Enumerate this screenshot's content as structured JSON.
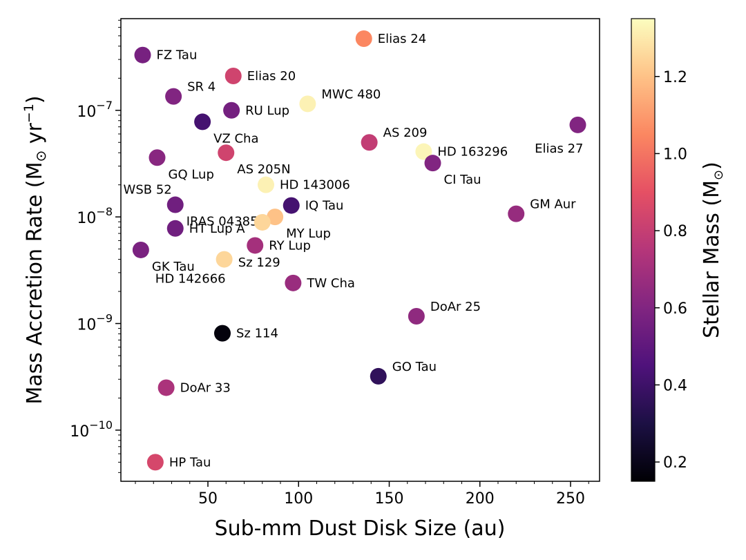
{
  "chart_data": {
    "type": "scatter",
    "title": "",
    "xlabel": "Sub-mm Dust Disk Size (au)",
    "ylabel": "Mass Accretion Rate (M",
    "ylabel_sub": "⊙",
    "ylabel_unit": " yr",
    "ylabel_exp": "−1",
    "ylabel_close": ")",
    "colorbar_label": "Stellar Mass (M",
    "colorbar_label_sub": "⊙",
    "colorbar_label_close": ")",
    "xlim": [
      2,
      266
    ],
    "ylog10lim": [
      -10.48,
      -6.14
    ],
    "y_scale": "log",
    "x_ticks": [
      50,
      100,
      150,
      200,
      250
    ],
    "y_ticks": [
      {
        "exp": -10,
        "label_base": "10",
        "label_exp": "−10"
      },
      {
        "exp": -9,
        "label_base": "10",
        "label_exp": "−9"
      },
      {
        "exp": -8,
        "label_base": "10",
        "label_exp": "−8"
      },
      {
        "exp": -7,
        "label_base": "10",
        "label_exp": "−7"
      }
    ],
    "colorbar_range": [
      0.15,
      1.35
    ],
    "colorbar_ticks": [
      "0.2",
      "0.4",
      "0.6",
      "0.8",
      "1.0",
      "1.2"
    ],
    "colormap": [
      "#000004",
      "#1c1044",
      "#4f127b",
      "#812581",
      "#b5367a",
      "#e55064",
      "#fb8761",
      "#fec287",
      "#fcfdbf"
    ],
    "points": [
      {
        "name": "FZ Tau",
        "x": 14,
        "y": 3.3e-07,
        "mass": 0.57,
        "label_pos": "right"
      },
      {
        "name": "Elias 24",
        "x": 136,
        "y": 4.7e-07,
        "mass": 1.05,
        "label_pos": "right"
      },
      {
        "name": "Elias 20",
        "x": 64,
        "y": 2.1e-07,
        "mass": 0.83,
        "label_pos": "right"
      },
      {
        "name": "SR 4",
        "x": 31,
        "y": 1.35e-07,
        "mass": 0.6,
        "label_pos": "right-up"
      },
      {
        "name": "RU Lup",
        "x": 63,
        "y": 1e-07,
        "mass": 0.56,
        "label_pos": "right"
      },
      {
        "name": "MWC 480",
        "x": 105,
        "y": 1.15e-07,
        "mass": 1.32,
        "label_pos": "right-up"
      },
      {
        "name": "VZ Cha",
        "x": 47,
        "y": 7.8e-08,
        "mass": 0.42,
        "label_pos": "below-right"
      },
      {
        "name": "AS 209",
        "x": 139,
        "y": 5e-08,
        "mass": 0.79,
        "label_pos": "right-up"
      },
      {
        "name": "HD 163296",
        "x": 169,
        "y": 4.1e-08,
        "mass": 1.33,
        "label_pos": "right"
      },
      {
        "name": "Elias 27",
        "x": 254,
        "y": 7.3e-08,
        "mass": 0.6,
        "label_pos": "below-left"
      },
      {
        "name": "AS 205N",
        "x": 60,
        "y": 4e-08,
        "mass": 0.83,
        "label_pos": "below-right"
      },
      {
        "name": "CI Tau",
        "x": 174,
        "y": 3.2e-08,
        "mass": 0.6,
        "label_pos": "below-right"
      },
      {
        "name": "GQ Lup",
        "x": 22,
        "y": 3.6e-08,
        "mass": 0.62,
        "label_pos": "below-right"
      },
      {
        "name": "HD 143006",
        "x": 82,
        "y": 2e-08,
        "mass": 1.32,
        "label_pos": "right"
      },
      {
        "name": "WSB 52",
        "x": 32,
        "y": 1.3e-08,
        "mass": 0.55,
        "label_pos": "left-up"
      },
      {
        "name": "IRAS 04385",
        "x": 32,
        "y": 1.3e-08,
        "mass": 0.55,
        "label_pos": "below-right"
      },
      {
        "name": "IQ Tau",
        "x": 96,
        "y": 1.28e-08,
        "mass": 0.42,
        "label_pos": "right"
      },
      {
        "name": "GM Aur",
        "x": 220,
        "y": 1.07e-08,
        "mass": 0.66,
        "label_pos": "right-up"
      },
      {
        "name": "HT Lup A",
        "x": 32,
        "y": 7.8e-09,
        "mass": 0.55,
        "label_pos": "right"
      },
      {
        "name": "MY Lup",
        "x": 87,
        "y": 1e-08,
        "mass": 1.2,
        "label_pos": "below-right"
      },
      {
        "name": "Sz 129",
        "x": 80,
        "y": 8.9e-09,
        "mass": 1.25,
        "label_pos": "below-left"
      },
      {
        "name": "RY Lup",
        "x": 76,
        "y": 5.4e-09,
        "mass": 0.7,
        "label_pos": "right"
      },
      {
        "name": "GK Tau",
        "x": 13,
        "y": 4.9e-09,
        "mass": 0.58,
        "label_pos": "below-right"
      },
      {
        "name": "HD 142666",
        "x": 59,
        "y": 4e-09,
        "mass": 1.25,
        "label_pos": "below-left"
      },
      {
        "name": "TW Cha",
        "x": 97,
        "y": 2.4e-09,
        "mass": 0.67,
        "label_pos": "right"
      },
      {
        "name": "DoAr 25",
        "x": 165,
        "y": 1.17e-09,
        "mass": 0.64,
        "label_pos": "right-up"
      },
      {
        "name": "Sz 114",
        "x": 58,
        "y": 8.1e-10,
        "mass": 0.17,
        "label_pos": "right"
      },
      {
        "name": "GO Tau",
        "x": 144,
        "y": 3.2e-10,
        "mass": 0.36,
        "label_pos": "right-up"
      },
      {
        "name": "DoAr 33",
        "x": 27,
        "y": 2.5e-10,
        "mass": 0.72,
        "label_pos": "right"
      },
      {
        "name": "HP Tau",
        "x": 21,
        "y": 5e-11,
        "mass": 0.85,
        "label_pos": "right"
      }
    ]
  }
}
